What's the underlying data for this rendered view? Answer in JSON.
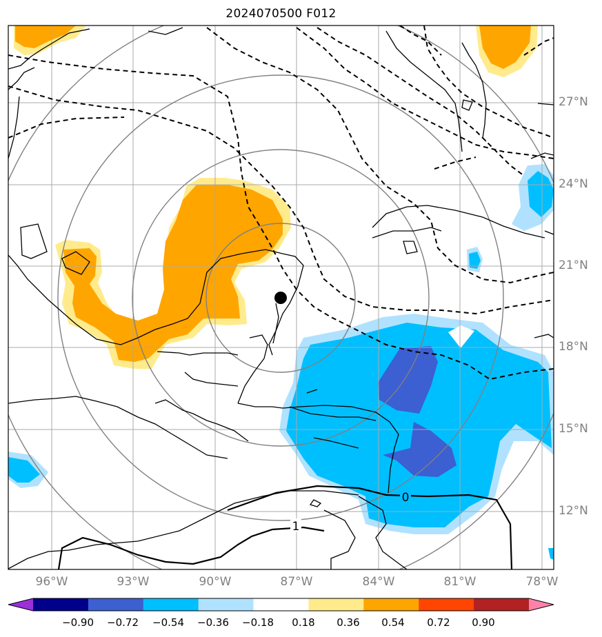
{
  "title": "2024070500 F012",
  "lat_labels": [
    "27°N",
    "24°N",
    "21°N",
    "18°N",
    "15°N",
    "12°N"
  ],
  "lon_labels": [
    "96°W",
    "93°W",
    "90°W",
    "87°W",
    "84°W",
    "81°W",
    "78°W"
  ],
  "contour_labels": [
    "0",
    "1"
  ],
  "colorbar": {
    "ticks": [
      "−0.90",
      "−0.72",
      "−0.54",
      "−0.36",
      "−0.18",
      "0.18",
      "0.36",
      "0.54",
      "0.72",
      "0.90"
    ],
    "colors": [
      "#9b30d9",
      "#00008b",
      "#3c5fd2",
      "#00bfff",
      "#b0e2ff",
      "#ffffff",
      "#ffeb8c",
      "#ffa500",
      "#ff4500",
      "#b22222",
      "#ff82ab"
    ]
  },
  "colors": {
    "positive_fill": "#ffa500",
    "positive_edge": "#ffeb8c",
    "negative_fill": "#00bfff",
    "negative_edge": "#b0e2ff",
    "strong_negative": "#3c5fd2"
  }
}
